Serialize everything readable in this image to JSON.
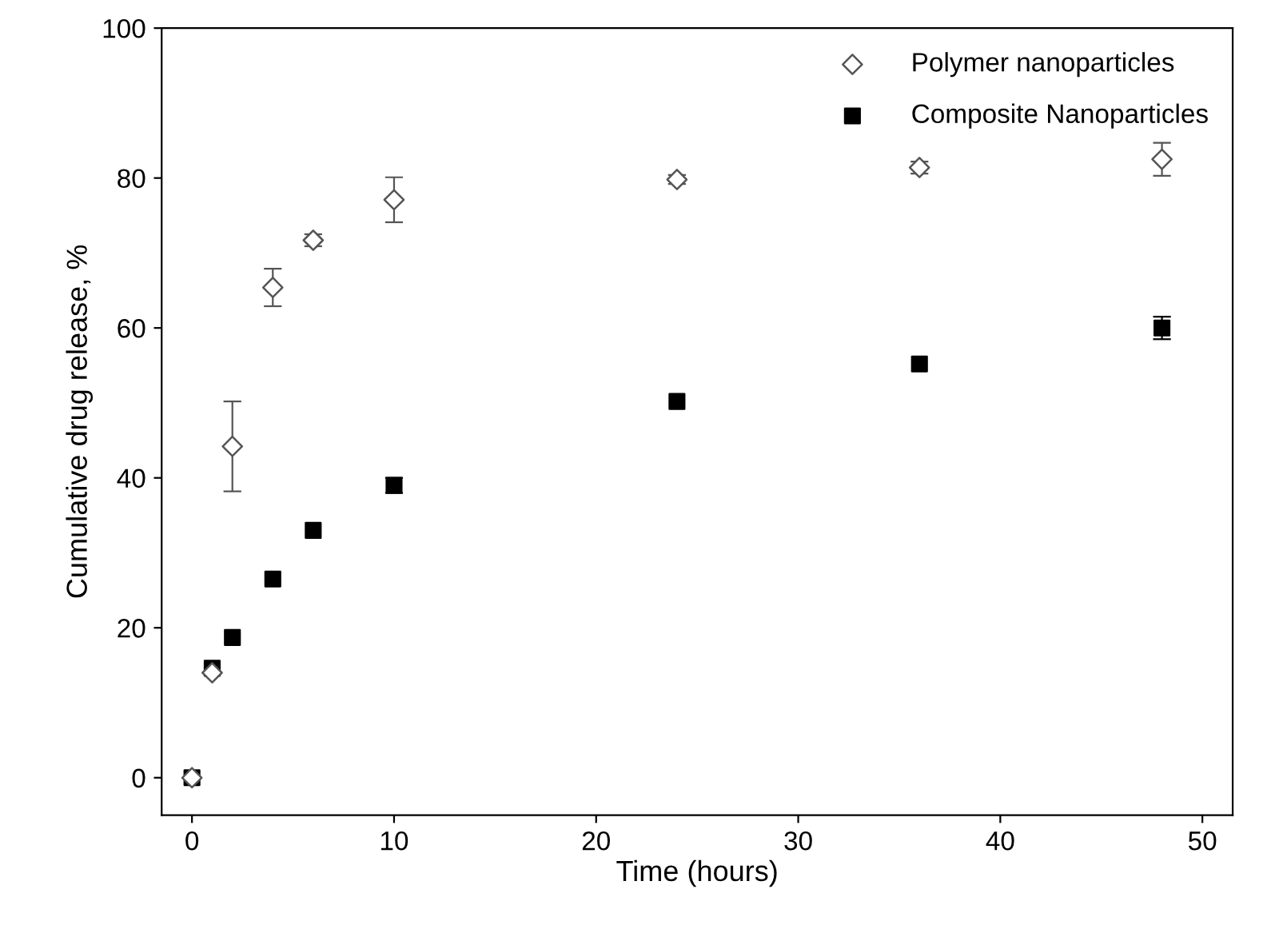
{
  "chart_data": {
    "type": "scatter",
    "xlabel": "Time (hours)",
    "ylabel": "Cumulative drug release, %",
    "xlim": [
      -1.5,
      51.5
    ],
    "ylim": [
      -5,
      100
    ],
    "xticks": [
      0,
      10,
      20,
      30,
      40,
      50
    ],
    "yticks": [
      0,
      20,
      40,
      60,
      80,
      100
    ],
    "grid": false,
    "legend": "top right",
    "x": [
      0,
      1,
      2,
      4,
      6,
      10,
      24,
      36,
      48
    ],
    "series": [
      {
        "name": "Polymer nanoparticles",
        "color": "#555555",
        "marker": "diamond",
        "values": [
          0,
          14,
          44.2,
          65.4,
          71.7,
          77.1,
          79.8,
          81.4,
          82.5
        ],
        "errors": [
          null,
          null,
          6,
          2.5,
          0.8,
          3,
          0.6,
          0.8,
          2.2
        ]
      },
      {
        "name": "Composite Nanoparticles",
        "color": "#000000",
        "marker": "square",
        "values": [
          0,
          14.6,
          18.7,
          26.5,
          33,
          39,
          50.2,
          55.2,
          60
        ],
        "errors": [
          null,
          null,
          null,
          null,
          null,
          1,
          null,
          null,
          1.5
        ]
      }
    ]
  }
}
